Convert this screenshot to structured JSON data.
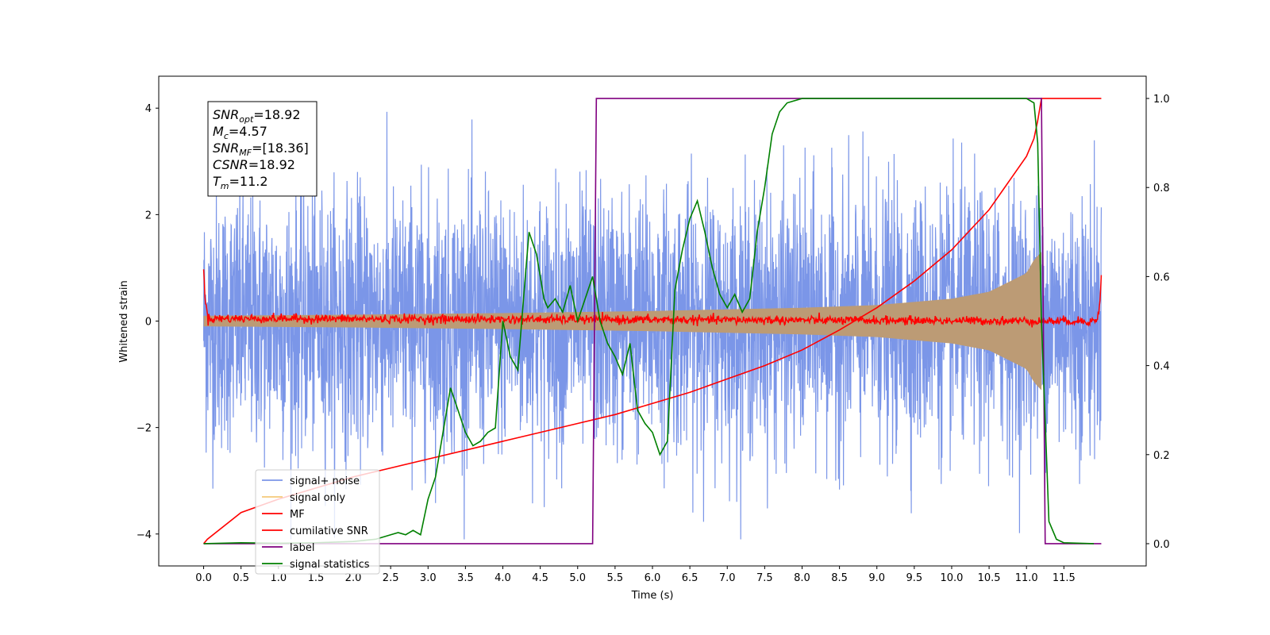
{
  "chart_data": {
    "type": "line",
    "title": "",
    "xlabel": "Time (s)",
    "ylabel": "Whitened strain",
    "ylabel_right": "",
    "xlim": [
      -0.6,
      12.6
    ],
    "ylim_left": [
      -4.6,
      4.6
    ],
    "ylim_right": [
      -0.05,
      1.05
    ],
    "x_ticks": [
      0.0,
      0.5,
      1.0,
      1.5,
      2.0,
      2.5,
      3.0,
      3.5,
      4.0,
      4.5,
      5.0,
      5.5,
      6.0,
      6.5,
      7.0,
      7.5,
      8.0,
      8.5,
      9.0,
      9.5,
      10.0,
      10.5,
      11.0,
      11.5
    ],
    "x_tick_labels": [
      "0.0",
      "0.5",
      "1.0",
      "1.5",
      "2.0",
      "2.5",
      "3.0",
      "3.5",
      "4.0",
      "4.5",
      "5.0",
      "5.5",
      "6.0",
      "6.5",
      "7.0",
      "7.5",
      "8.0",
      "8.5",
      "9.0",
      "9.5",
      "10.0",
      "10.5",
      "11.0",
      "11.5"
    ],
    "y_left_ticks": [
      -4,
      -2,
      0,
      2,
      4
    ],
    "y_left_tick_labels": [
      "−4",
      "−2",
      "0",
      "2",
      "4"
    ],
    "y_right_ticks": [
      0.0,
      0.2,
      0.4,
      0.6,
      0.8,
      1.0
    ],
    "y_right_tick_labels": [
      "0.0",
      "0.2",
      "0.4",
      "0.6",
      "0.8",
      "1.0"
    ],
    "grid": false,
    "legend_position": "lower-left",
    "annotation": {
      "lines": [
        {
          "sym": "SNR",
          "sub": "opt",
          "val": "=18.92"
        },
        {
          "sym": "M",
          "sub": "c",
          "val": "=4.57"
        },
        {
          "sym": "SNR",
          "sub": "MF",
          "val": "=[18.36]"
        },
        {
          "sym": "CSNR",
          "sub": "",
          "val": "=18.92"
        },
        {
          "sym": "T",
          "sub": "m",
          "val": "=11.2"
        }
      ]
    },
    "series": [
      {
        "name": "signal+ noise",
        "axis": "left",
        "color": "#7b96e8",
        "style": "noise",
        "x_range": [
          0.0,
          12.0
        ],
        "amplitude_std": 1.2,
        "envelope_at": [
          0.0,
          4.0,
          8.0,
          10.0,
          11.0,
          11.2
        ],
        "envelope": [
          0.16,
          0.18,
          0.3,
          0.45,
          0.9,
          1.1
        ]
      },
      {
        "name": "signal only",
        "axis": "left",
        "color": "#f5c97a",
        "style": "chirp",
        "x_range": [
          0.0,
          11.2
        ],
        "envelope_at": [
          0.0,
          2.0,
          4.0,
          6.0,
          8.0,
          9.0,
          10.0,
          10.5,
          11.0,
          11.1,
          11.2
        ],
        "envelope": [
          0.1,
          0.12,
          0.15,
          0.19,
          0.25,
          0.3,
          0.42,
          0.55,
          0.9,
          1.15,
          1.3
        ]
      },
      {
        "name": "MF",
        "axis": "left",
        "color": "#ff0000",
        "style": "mf",
        "x_range": [
          0.0,
          12.0
        ],
        "x": [
          0.0,
          0.02,
          0.06,
          11.94,
          11.98,
          12.0
        ],
        "y": [
          1.0,
          0.4,
          0.05,
          0.0,
          0.3,
          0.9
        ],
        "noise_std": 0.04
      },
      {
        "name": "cumilative SNR",
        "axis": "right",
        "color": "#ff0000",
        "x": [
          0.0,
          0.05,
          0.5,
          1.0,
          1.5,
          2.0,
          2.5,
          3.0,
          3.5,
          4.0,
          4.5,
          5.0,
          5.5,
          6.0,
          6.5,
          7.0,
          7.5,
          8.0,
          8.5,
          9.0,
          9.5,
          10.0,
          10.5,
          11.0,
          11.1,
          11.15,
          11.2,
          12.0
        ],
        "y": [
          0.0,
          0.01,
          0.07,
          0.1,
          0.125,
          0.15,
          0.17,
          0.19,
          0.21,
          0.23,
          0.25,
          0.27,
          0.29,
          0.315,
          0.34,
          0.37,
          0.4,
          0.435,
          0.48,
          0.53,
          0.59,
          0.66,
          0.75,
          0.87,
          0.91,
          0.95,
          1.0,
          1.0
        ]
      },
      {
        "name": "label",
        "axis": "right",
        "color": "#800080",
        "x": [
          0.0,
          5.2,
          5.25,
          11.2,
          11.25,
          12.0
        ],
        "y": [
          0.0,
          0.0,
          1.0,
          1.0,
          0.0,
          0.0
        ]
      },
      {
        "name": "signal statistics",
        "axis": "right",
        "color": "#008000",
        "x": [
          0.0,
          0.5,
          1.0,
          1.5,
          2.0,
          2.3,
          2.5,
          2.6,
          2.7,
          2.8,
          2.9,
          3.0,
          3.1,
          3.2,
          3.3,
          3.4,
          3.5,
          3.6,
          3.7,
          3.8,
          3.9,
          4.0,
          4.1,
          4.2,
          4.3,
          4.35,
          4.45,
          4.5,
          4.55,
          4.6,
          4.7,
          4.8,
          4.9,
          5.0,
          5.1,
          5.2,
          5.3,
          5.4,
          5.5,
          5.6,
          5.7,
          5.8,
          5.9,
          6.0,
          6.1,
          6.2,
          6.3,
          6.4,
          6.5,
          6.6,
          6.7,
          6.8,
          6.9,
          7.0,
          7.1,
          7.2,
          7.3,
          7.4,
          7.5,
          7.6,
          7.7,
          7.8,
          8.0,
          8.5,
          9.0,
          9.5,
          10.0,
          10.5,
          10.8,
          11.0,
          11.1,
          11.15,
          11.2,
          11.3,
          11.4,
          11.5,
          11.9
        ],
        "y": [
          0.0,
          0.002,
          0.001,
          0.002,
          0.005,
          0.01,
          0.02,
          0.025,
          0.02,
          0.03,
          0.02,
          0.1,
          0.15,
          0.25,
          0.35,
          0.3,
          0.25,
          0.22,
          0.23,
          0.25,
          0.26,
          0.5,
          0.42,
          0.39,
          0.6,
          0.7,
          0.65,
          0.6,
          0.55,
          0.53,
          0.55,
          0.52,
          0.58,
          0.5,
          0.55,
          0.6,
          0.5,
          0.45,
          0.42,
          0.38,
          0.45,
          0.3,
          0.27,
          0.25,
          0.2,
          0.23,
          0.57,
          0.66,
          0.73,
          0.77,
          0.7,
          0.62,
          0.56,
          0.53,
          0.56,
          0.52,
          0.55,
          0.7,
          0.8,
          0.92,
          0.97,
          0.99,
          1.0,
          1.0,
          1.0,
          1.0,
          1.0,
          1.0,
          1.0,
          1.0,
          0.99,
          0.9,
          0.5,
          0.05,
          0.01,
          0.002,
          0.0
        ]
      }
    ],
    "legend": [
      {
        "name": "signal+ noise",
        "color": "#7b96e8"
      },
      {
        "name": "signal only",
        "color": "#f5c97a"
      },
      {
        "name": "MF",
        "color": "#ff0000"
      },
      {
        "name": "cumilative SNR",
        "color": "#ff0000"
      },
      {
        "name": "label",
        "color": "#800080"
      },
      {
        "name": "signal statistics",
        "color": "#008000"
      }
    ]
  }
}
